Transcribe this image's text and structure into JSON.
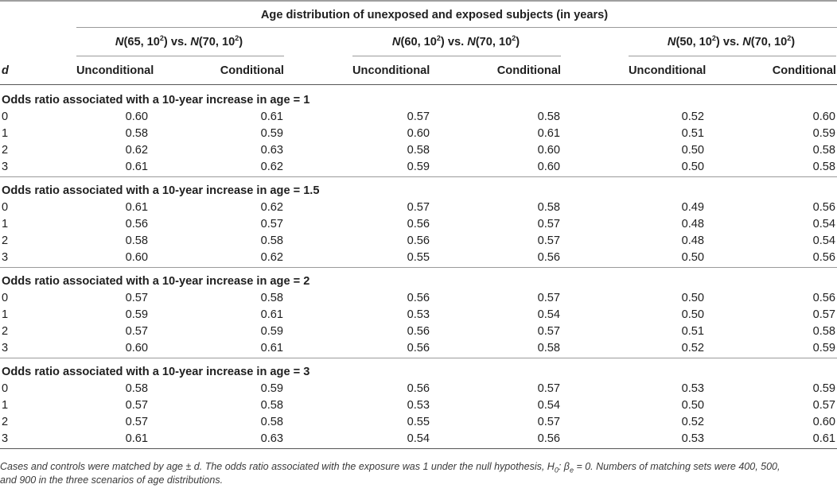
{
  "title": "Age distribution of unexposed and exposed subjects (in years)",
  "scenarios": [
    {
      "m": "65",
      "v": "10",
      "m2": "70",
      "v2": "10"
    },
    {
      "m": "60",
      "v": "10",
      "m2": "70",
      "v2": "10"
    },
    {
      "m": "50",
      "v": "10",
      "m2": "70",
      "v2": "10"
    }
  ],
  "labels": {
    "N": "N",
    "vs": ") vs. ",
    "open": "(",
    "comma": ", ",
    "sup": "2",
    "close": ")",
    "d": "d",
    "unconditional": "Unconditional",
    "conditional": "Conditional"
  },
  "sections": [
    {
      "title": "Odds ratio associated with a 10-year increase in age = 1",
      "rows": [
        {
          "d": "0",
          "v": [
            "0.60",
            "0.61",
            "0.57",
            "0.58",
            "0.52",
            "0.60"
          ]
        },
        {
          "d": "1",
          "v": [
            "0.58",
            "0.59",
            "0.60",
            "0.61",
            "0.51",
            "0.59"
          ]
        },
        {
          "d": "2",
          "v": [
            "0.62",
            "0.63",
            "0.58",
            "0.60",
            "0.50",
            "0.58"
          ]
        },
        {
          "d": "3",
          "v": [
            "0.61",
            "0.62",
            "0.59",
            "0.60",
            "0.50",
            "0.58"
          ]
        }
      ]
    },
    {
      "title": "Odds ratio associated with a 10-year increase in age = 1.5",
      "rows": [
        {
          "d": "0",
          "v": [
            "0.61",
            "0.62",
            "0.57",
            "0.58",
            "0.49",
            "0.56"
          ]
        },
        {
          "d": "1",
          "v": [
            "0.56",
            "0.57",
            "0.56",
            "0.57",
            "0.48",
            "0.54"
          ]
        },
        {
          "d": "2",
          "v": [
            "0.58",
            "0.58",
            "0.56",
            "0.57",
            "0.48",
            "0.54"
          ]
        },
        {
          "d": "3",
          "v": [
            "0.60",
            "0.62",
            "0.55",
            "0.56",
            "0.50",
            "0.56"
          ]
        }
      ]
    },
    {
      "title": "Odds ratio associated with a 10-year increase in age = 2",
      "rows": [
        {
          "d": "0",
          "v": [
            "0.57",
            "0.58",
            "0.56",
            "0.57",
            "0.50",
            "0.56"
          ]
        },
        {
          "d": "1",
          "v": [
            "0.59",
            "0.61",
            "0.53",
            "0.54",
            "0.50",
            "0.57"
          ]
        },
        {
          "d": "2",
          "v": [
            "0.57",
            "0.59",
            "0.56",
            "0.57",
            "0.51",
            "0.58"
          ]
        },
        {
          "d": "3",
          "v": [
            "0.60",
            "0.61",
            "0.56",
            "0.58",
            "0.52",
            "0.59"
          ]
        }
      ]
    },
    {
      "title": "Odds ratio associated with a 10-year increase in age = 3",
      "rows": [
        {
          "d": "0",
          "v": [
            "0.58",
            "0.59",
            "0.56",
            "0.57",
            "0.53",
            "0.59"
          ]
        },
        {
          "d": "1",
          "v": [
            "0.57",
            "0.58",
            "0.53",
            "0.54",
            "0.50",
            "0.57"
          ]
        },
        {
          "d": "2",
          "v": [
            "0.57",
            "0.58",
            "0.55",
            "0.57",
            "0.52",
            "0.60"
          ]
        },
        {
          "d": "3",
          "v": [
            "0.61",
            "0.63",
            "0.54",
            "0.56",
            "0.53",
            "0.61"
          ]
        }
      ]
    }
  ],
  "footnote": {
    "line1_a": "Cases and controls were matched by age ± d. The odds ratio associated with the exposure was 1 under the null hypothesis, H",
    "h_sub": "0",
    "line1_b": ": β",
    "beta_sub": "e",
    "line1_c": " = 0. Numbers of matching sets were 400, 500,",
    "line2": "and 900 in the three scenarios of age distributions."
  }
}
